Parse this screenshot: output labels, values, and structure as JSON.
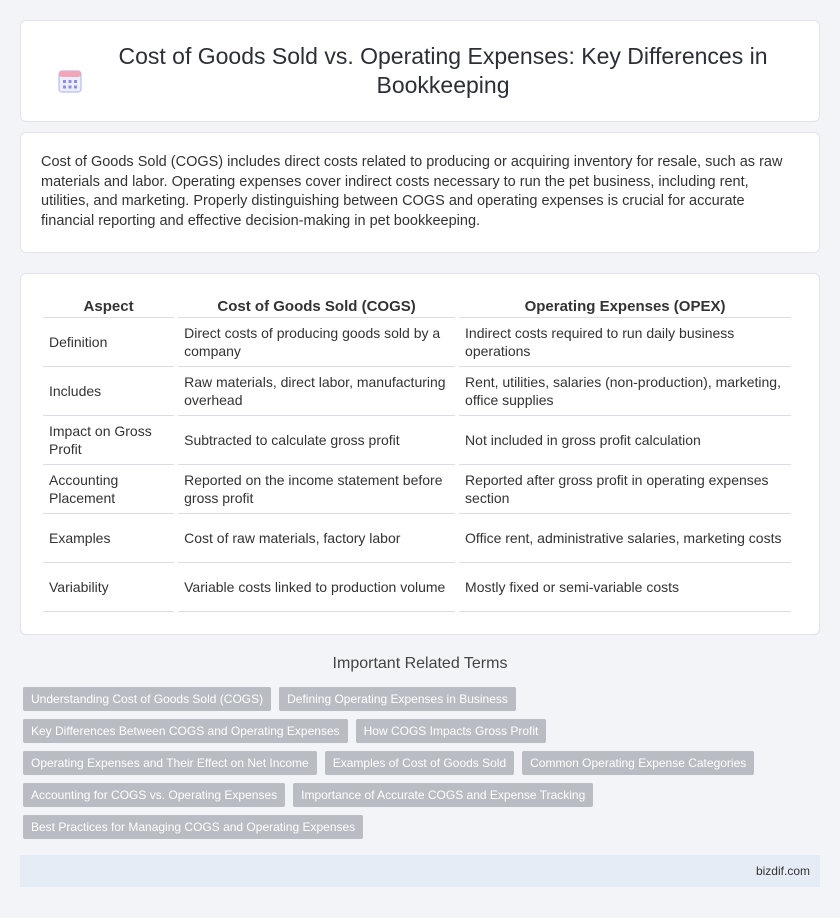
{
  "header": {
    "icon": "calendar-grid-icon",
    "title": "Cost of Goods Sold vs. Operating Expenses: Key Differences in Bookkeeping"
  },
  "intro": {
    "text": "Cost of Goods Sold (COGS) includes direct costs related to producing or acquiring inventory for resale, such as raw materials and labor. Operating expenses cover indirect costs necessary to run the pet business, including rent, utilities, and marketing. Properly distinguishing between COGS and operating expenses is crucial for accurate financial reporting and effective decision-making in pet bookkeeping."
  },
  "table": {
    "headers": [
      "Aspect",
      "Cost of Goods Sold (COGS)",
      "Operating Expenses (OPEX)"
    ],
    "rows": [
      [
        "Definition",
        "Direct costs of producing goods sold by a company",
        "Indirect costs required to run daily business operations"
      ],
      [
        "Includes",
        "Raw materials, direct labor, manufacturing overhead",
        "Rent, utilities, salaries (non-production), marketing, office supplies"
      ],
      [
        "Impact on Gross Profit",
        "Subtracted to calculate gross profit",
        "Not included in gross profit calculation"
      ],
      [
        "Accounting Placement",
        "Reported on the income statement before gross profit",
        "Reported after gross profit in operating expenses section"
      ],
      [
        "Examples",
        "Cost of raw materials, factory labor",
        "Office rent, administrative salaries, marketing costs"
      ],
      [
        "Variability",
        "Variable costs linked to production volume",
        "Mostly fixed or semi-variable costs"
      ]
    ]
  },
  "terms": {
    "title": "Important Related Terms",
    "rows": [
      [
        "Understanding Cost of Goods Sold (COGS)",
        "Defining Operating Expenses in Business"
      ],
      [
        "Key Differences Between COGS and Operating Expenses",
        "How COGS Impacts Gross Profit"
      ],
      [
        "Operating Expenses and Their Effect on Net Income",
        "Examples of Cost of Goods Sold",
        "Common Operating Expense Categories"
      ],
      [
        "Accounting for COGS vs. Operating Expenses",
        "Importance of Accurate COGS and Expense Tracking"
      ],
      [
        "Best Practices for Managing COGS and Operating Expenses"
      ]
    ]
  },
  "footer": {
    "site": "bizdif.com"
  },
  "colors": {
    "background": "#f3f4f7",
    "tag": "#b9bcc2",
    "footer": "#e6ecf5",
    "icon_accent": "#8a8fe0"
  }
}
